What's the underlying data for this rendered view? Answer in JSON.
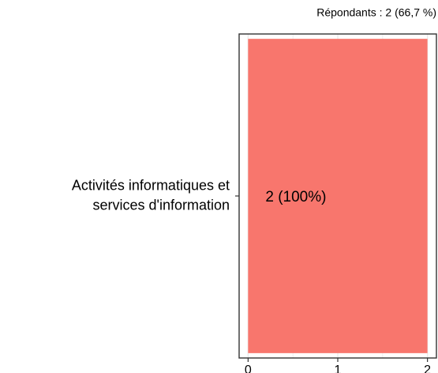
{
  "chart_data": {
    "type": "bar",
    "orientation": "horizontal",
    "subtitle": "Répondants : 2 (66,7 %)",
    "categories": [
      [
        "Activités informatiques et",
        "services d'information"
      ]
    ],
    "values": [
      2
    ],
    "value_labels": [
      "2 (100%)"
    ],
    "color": "#f8766d",
    "xlim": [
      -0.1,
      2.1
    ],
    "xticks": [
      0,
      1,
      2
    ],
    "minor_xticks": [
      0.5,
      1.5
    ],
    "grid": true
  }
}
